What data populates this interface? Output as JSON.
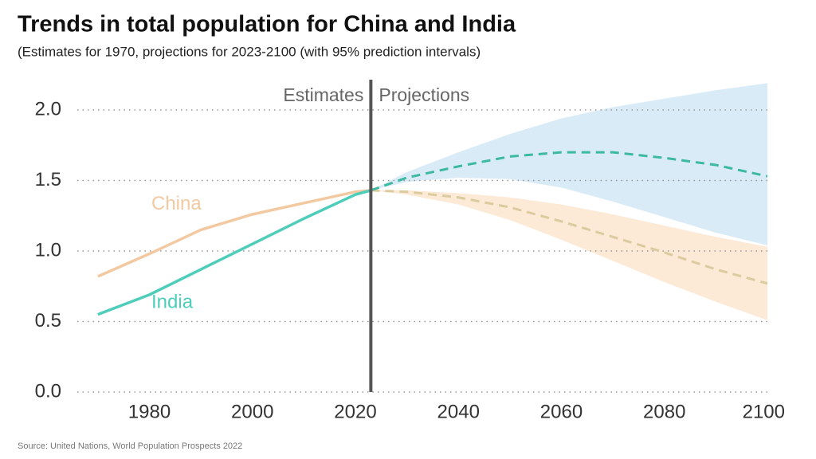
{
  "title": "Trends in total population for China and India",
  "subtitle": "(Estimates for 1970, projections for 2023-2100 (with 95% prediction intervals)",
  "source": "Source: United Nations, World Population Prospects 2022",
  "chart_data": {
    "type": "line",
    "divider": {
      "x": 2023,
      "left_label": "Estimates",
      "right_label": "Projections"
    },
    "xlim": [
      1966,
      2100
    ],
    "xticks": [
      1980,
      2000,
      2020,
      2040,
      2060,
      2080,
      2100
    ],
    "ylim": [
      0,
      2.2
    ],
    "yticks": [
      {
        "value": 0,
        "label": "0.0"
      },
      0.5,
      {
        "value": 1,
        "label": "1.0"
      },
      1.5,
      {
        "value": 2,
        "label": "2.0"
      }
    ],
    "grid": true,
    "series": [
      {
        "name": "China",
        "color": "#f2c9a1",
        "projection_color": "#dccb9f",
        "band_color": "#fce5cf",
        "estimates": {
          "x": [
            1970,
            1980,
            1990,
            2000,
            2010,
            2020,
            2023
          ],
          "values": [
            0.82,
            0.98,
            1.15,
            1.26,
            1.34,
            1.42,
            1.43
          ]
        },
        "projections": {
          "x": [
            2023,
            2030,
            2040,
            2050,
            2060,
            2070,
            2080,
            2090,
            2100
          ],
          "median": [
            1.43,
            1.42,
            1.38,
            1.31,
            1.21,
            1.1,
            0.99,
            0.87,
            0.77
          ],
          "lower": [
            1.43,
            1.4,
            1.33,
            1.22,
            1.08,
            0.93,
            0.78,
            0.64,
            0.51
          ],
          "upper": [
            1.43,
            1.43,
            1.41,
            1.38,
            1.33,
            1.26,
            1.18,
            1.1,
            1.03
          ]
        }
      },
      {
        "name": "India",
        "color": "#4fcdbb",
        "projection_color": "#3db9a2",
        "band_color": "#d2e8f6",
        "estimates": {
          "x": [
            1970,
            1980,
            1990,
            2000,
            2010,
            2020,
            2023
          ],
          "values": [
            0.55,
            0.69,
            0.87,
            1.05,
            1.23,
            1.4,
            1.43
          ]
        },
        "projections": {
          "x": [
            2023,
            2030,
            2040,
            2050,
            2060,
            2070,
            2080,
            2090,
            2100
          ],
          "median": [
            1.43,
            1.52,
            1.6,
            1.67,
            1.7,
            1.7,
            1.66,
            1.61,
            1.53
          ],
          "lower": [
            1.43,
            1.49,
            1.52,
            1.51,
            1.45,
            1.35,
            1.24,
            1.13,
            1.04
          ],
          "upper": [
            1.43,
            1.56,
            1.7,
            1.83,
            1.94,
            2.02,
            2.08,
            2.14,
            2.19
          ]
        }
      }
    ]
  }
}
